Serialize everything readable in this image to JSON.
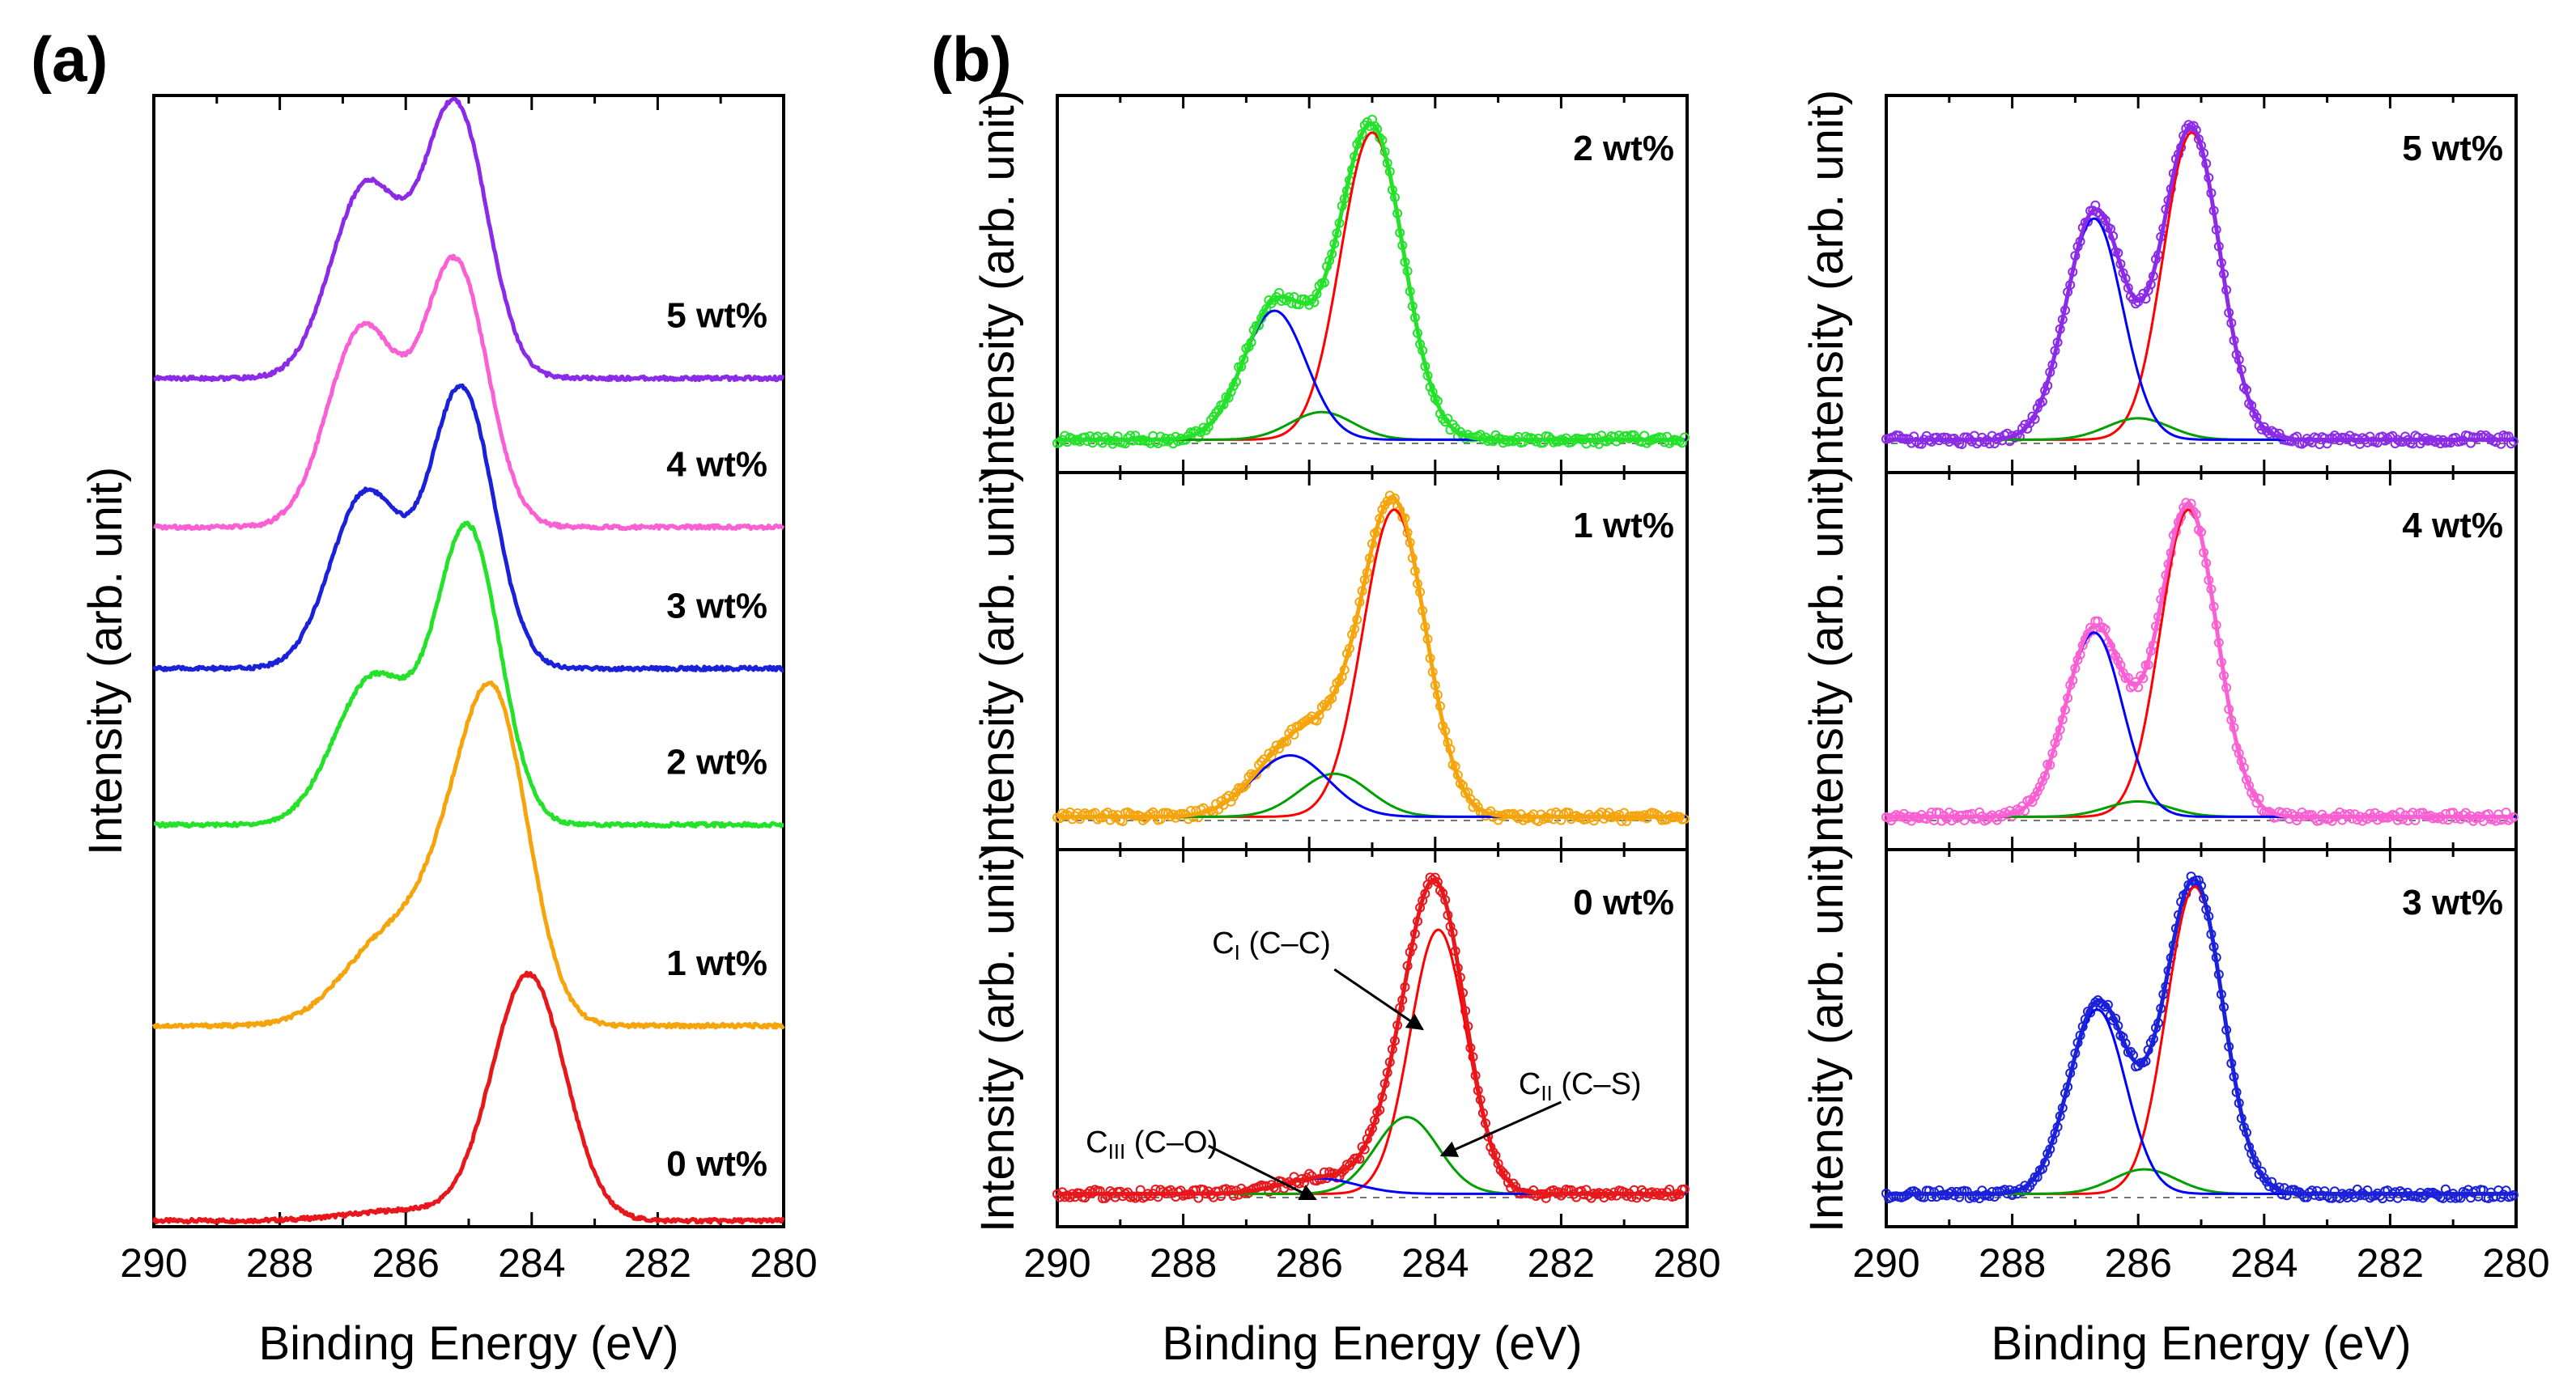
{
  "panel_a_label": "(a)",
  "panel_b_label": "(b)",
  "chart_data": [
    {
      "id": "a",
      "type": "line",
      "title": "",
      "xlabel": "Binding Energy (eV)",
      "ylabel": "Intensity (arb. unit)",
      "xlim": [
        290,
        280
      ],
      "xticks": [
        "290",
        "288",
        "286",
        "284",
        "282",
        "280"
      ],
      "ylim": [
        0,
        7.6
      ],
      "grid": false,
      "series": [
        {
          "name": "0 wt%",
          "label": "0 wt%",
          "color": "#e8171b",
          "offset": 0.0,
          "baseline": 0.04,
          "peaks": [
            [
              284.05,
              1.65,
              0.58
            ],
            [
              286.0,
              0.07,
              0.9
            ]
          ]
        },
        {
          "name": "1 wt%",
          "label": "1 wt%",
          "color": "#f5a40c",
          "offset": 1.35,
          "baseline": 0.0,
          "peaks": [
            [
              284.6,
              2.15,
              0.55
            ],
            [
              286.2,
              0.62,
              0.75
            ],
            [
              285.4,
              0.35,
              0.45
            ]
          ]
        },
        {
          "name": "2 wt%",
          "label": "2 wt%",
          "color": "#24e12a",
          "offset": 2.7,
          "baseline": 0.0,
          "peaks": [
            [
              285.0,
              1.95,
              0.5
            ],
            [
              286.55,
              0.95,
              0.6
            ],
            [
              285.8,
              0.12,
              0.5
            ]
          ]
        },
        {
          "name": "3 wt%",
          "label": "3 wt%",
          "color": "#1b21d8",
          "offset": 3.75,
          "baseline": 0.0,
          "peaks": [
            [
              285.1,
              1.85,
              0.5
            ],
            [
              286.65,
              1.15,
              0.55
            ],
            [
              285.9,
              0.1,
              0.5
            ]
          ]
        },
        {
          "name": "4 wt%",
          "label": "4 wt%",
          "color": "#fa5fd4",
          "offset": 4.7,
          "baseline": 0.0,
          "peaks": [
            [
              285.2,
              1.75,
              0.5
            ],
            [
              286.7,
              1.3,
              0.55
            ],
            [
              286.0,
              0.1,
              0.5
            ]
          ]
        },
        {
          "name": "5 wt%",
          "label": "5 wt%",
          "color": "#8b2be8",
          "offset": 5.7,
          "baseline": 0.0,
          "peaks": [
            [
              285.2,
              1.8,
              0.5
            ],
            [
              286.65,
              1.25,
              0.55
            ],
            [
              286.0,
              0.1,
              0.5
            ]
          ]
        }
      ]
    },
    {
      "id": "b-left",
      "type": "line",
      "xlabel": "Binding Energy (eV)",
      "ylabel": "Intensity (arb. unit)",
      "xlim": [
        290,
        280
      ],
      "xticks": [
        "290",
        "288",
        "286",
        "284",
        "282",
        "280"
      ],
      "subplots": [
        {
          "label": "2 wt%",
          "data_color": "#24e12a",
          "ymax": 1.08,
          "components": [
            {
              "name": "CI",
              "color": "#ff0000",
              "center": 285.0,
              "height": 1.0,
              "width": 0.5
            },
            {
              "name": "CII",
              "color": "#00a000",
              "center": 285.8,
              "height": 0.09,
              "width": 0.5
            },
            {
              "name": "CIII",
              "color": "#0000ff",
              "center": 286.55,
              "height": 0.42,
              "width": 0.5
            }
          ]
        },
        {
          "label": "1 wt%",
          "data_color": "#f5a40c",
          "ymax": 1.08,
          "components": [
            {
              "name": "CI",
              "color": "#ff0000",
              "center": 284.65,
              "height": 1.0,
              "width": 0.5
            },
            {
              "name": "CII",
              "color": "#00a000",
              "center": 285.6,
              "height": 0.14,
              "width": 0.55
            },
            {
              "name": "CIII",
              "color": "#0000ff",
              "center": 286.3,
              "height": 0.2,
              "width": 0.6
            }
          ]
        },
        {
          "label": "0 wt%",
          "data_color": "#e8171b",
          "ymax": 1.08,
          "components": [
            {
              "name": "CI",
              "color": "#ff0000",
              "center": 283.95,
              "height": 0.86,
              "width": 0.45
            },
            {
              "name": "CII",
              "color": "#00a000",
              "center": 284.45,
              "height": 0.25,
              "width": 0.5
            },
            {
              "name": "CIII",
              "color": "#0000ff",
              "center": 285.85,
              "height": 0.05,
              "width": 0.6
            }
          ]
        }
      ],
      "annotations": {
        "ci": {
          "sub": "I",
          "suffix": " (C–C)"
        },
        "cii": {
          "sub": "II",
          "suffix": " (C–S)"
        },
        "ciii": {
          "sub": "III",
          "suffix": " (C–O)"
        }
      }
    },
    {
      "id": "b-right",
      "type": "line",
      "xlabel": "Binding Energy (eV)",
      "ylabel": "Intensity (arb. unit)",
      "xlim": [
        290,
        280
      ],
      "xticks": [
        "290",
        "288",
        "286",
        "284",
        "282",
        "280"
      ],
      "subplots": [
        {
          "label": "5 wt%",
          "data_color": "#8b2be8",
          "ymax": 1.08,
          "components": [
            {
              "name": "CI",
              "color": "#ff0000",
              "center": 285.15,
              "height": 1.0,
              "width": 0.45
            },
            {
              "name": "CII",
              "color": "#00a000",
              "center": 286.0,
              "height": 0.07,
              "width": 0.5
            },
            {
              "name": "CIII",
              "color": "#0000ff",
              "center": 286.7,
              "height": 0.72,
              "width": 0.45
            }
          ]
        },
        {
          "label": "4 wt%",
          "data_color": "#fa5fd4",
          "ymax": 1.08,
          "components": [
            {
              "name": "CI",
              "color": "#ff0000",
              "center": 285.2,
              "height": 1.0,
              "width": 0.45
            },
            {
              "name": "CII",
              "color": "#00a000",
              "center": 286.0,
              "height": 0.05,
              "width": 0.5
            },
            {
              "name": "CIII",
              "color": "#0000ff",
              "center": 286.7,
              "height": 0.6,
              "width": 0.45
            }
          ]
        },
        {
          "label": "3 wt%",
          "data_color": "#1b21d8",
          "ymax": 1.08,
          "components": [
            {
              "name": "CI",
              "color": "#ff0000",
              "center": 285.1,
              "height": 1.0,
              "width": 0.45
            },
            {
              "name": "CII",
              "color": "#00a000",
              "center": 285.9,
              "height": 0.08,
              "width": 0.5
            },
            {
              "name": "CIII",
              "color": "#0000ff",
              "center": 286.65,
              "height": 0.6,
              "width": 0.45
            }
          ]
        }
      ]
    }
  ]
}
